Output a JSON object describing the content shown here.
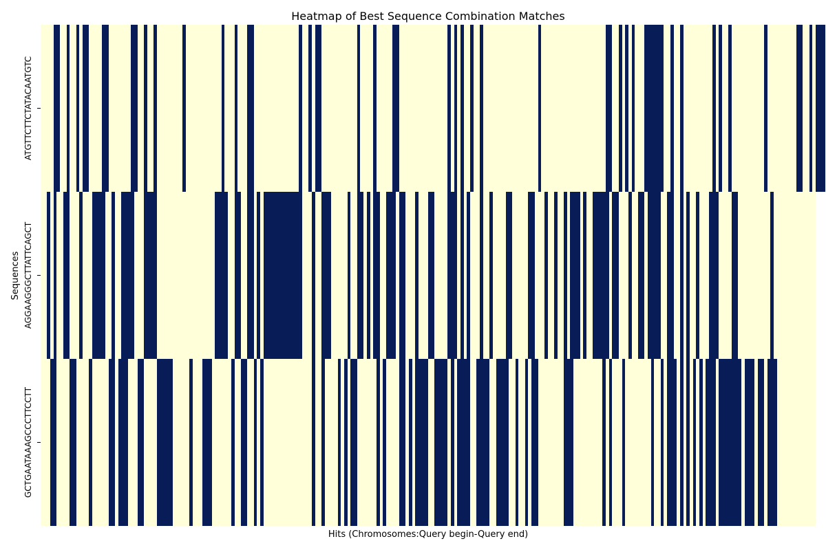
{
  "chart_data": {
    "type": "heatmap",
    "title": "Heatmap of Best Sequence Combination Matches",
    "xlabel": "Hits (Chromosomes:Query begin-Query end)",
    "ylabel": "Sequences",
    "rows": [
      "ATGTTCTTCTATACAATGTC",
      "AGGAAGGGCTTATTCAGCT",
      "GCTGAATAAAGCCCTTCCTT"
    ],
    "value_range": [
      0,
      1
    ],
    "colors": {
      "low": "#ffffd9",
      "high": "#081d58"
    },
    "grid": false,
    "legend": "none",
    "matches": [
      [
        [
          4,
          6
        ],
        [
          8,
          9
        ],
        [
          11,
          12
        ],
        [
          13,
          15
        ],
        [
          19,
          21
        ],
        [
          28,
          30
        ],
        [
          32,
          33
        ],
        [
          35,
          36
        ],
        [
          44,
          45
        ],
        [
          56,
          57
        ],
        [
          60,
          61
        ],
        [
          64,
          66
        ],
        [
          80,
          81
        ],
        [
          83,
          84
        ],
        [
          85,
          87
        ],
        [
          98,
          99
        ],
        [
          103,
          104
        ],
        [
          109,
          111
        ],
        [
          126,
          127
        ],
        [
          128,
          129
        ],
        [
          130,
          131
        ],
        [
          133,
          134
        ],
        [
          136,
          137
        ],
        [
          154,
          155
        ],
        [
          175,
          177
        ],
        [
          179,
          180
        ],
        [
          181,
          182
        ],
        [
          183,
          184
        ],
        [
          187,
          193
        ],
        [
          195,
          196
        ],
        [
          198,
          199
        ],
        [
          208,
          209
        ],
        [
          210,
          211
        ],
        [
          213,
          214
        ],
        [
          224,
          225
        ],
        [
          234,
          236
        ],
        [
          238,
          239
        ],
        [
          240,
          241
        ],
        [
          241,
          243
        ],
        [
          244,
          245
        ],
        [
          245,
          246
        ]
      ],
      [
        [
          2,
          3
        ],
        [
          4,
          5
        ],
        [
          7,
          9
        ],
        [
          12,
          13
        ],
        [
          16,
          20
        ],
        [
          22,
          23
        ],
        [
          25,
          29
        ],
        [
          32,
          36
        ],
        [
          54,
          58
        ],
        [
          60,
          62
        ],
        [
          64,
          66
        ],
        [
          67,
          68
        ],
        [
          69,
          81
        ],
        [
          84,
          85
        ],
        [
          87,
          90
        ],
        [
          95,
          96
        ],
        [
          98,
          100
        ],
        [
          101,
          102
        ],
        [
          103,
          105
        ],
        [
          107,
          110
        ],
        [
          111,
          113
        ],
        [
          116,
          117
        ],
        [
          120,
          122
        ],
        [
          126,
          129
        ],
        [
          130,
          131
        ],
        [
          132,
          133
        ],
        [
          136,
          137
        ],
        [
          139,
          140
        ],
        [
          144,
          146
        ],
        [
          151,
          153
        ],
        [
          156,
          157
        ],
        [
          159,
          160
        ],
        [
          162,
          163
        ],
        [
          164,
          167
        ],
        [
          168,
          169
        ],
        [
          171,
          176
        ],
        [
          177,
          179
        ],
        [
          182,
          183
        ],
        [
          185,
          187
        ],
        [
          188,
          192
        ],
        [
          194,
          196
        ],
        [
          198,
          199
        ],
        [
          200,
          201
        ],
        [
          203,
          204
        ],
        [
          207,
          210
        ],
        [
          214,
          216
        ],
        [
          226,
          227
        ]
      ],
      [
        [
          3,
          5
        ],
        [
          9,
          11
        ],
        [
          15,
          16
        ],
        [
          21,
          23
        ],
        [
          24,
          27
        ],
        [
          30,
          32
        ],
        [
          36,
          41
        ],
        [
          46,
          47
        ],
        [
          50,
          53
        ],
        [
          59,
          60
        ],
        [
          62,
          64
        ],
        [
          66,
          67
        ],
        [
          68,
          69
        ],
        [
          84,
          85
        ],
        [
          87,
          88
        ],
        [
          92,
          93
        ],
        [
          94,
          95
        ],
        [
          96,
          98
        ],
        [
          104,
          105
        ],
        [
          106,
          107
        ],
        [
          111,
          113
        ],
        [
          114,
          115
        ],
        [
          116,
          120
        ],
        [
          122,
          126
        ],
        [
          127,
          128
        ],
        [
          129,
          133
        ],
        [
          135,
          139
        ],
        [
          141,
          145
        ],
        [
          147,
          148
        ],
        [
          150,
          151
        ],
        [
          152,
          154
        ],
        [
          162,
          165
        ],
        [
          174,
          175
        ],
        [
          176,
          177
        ],
        [
          180,
          181
        ],
        [
          189,
          190
        ],
        [
          192,
          193
        ],
        [
          194,
          197
        ],
        [
          198,
          199
        ],
        [
          200,
          201
        ],
        [
          202,
          203
        ],
        [
          204,
          205
        ],
        [
          206,
          209
        ],
        [
          210,
          217
        ],
        [
          218,
          221
        ],
        [
          222,
          224
        ],
        [
          225,
          228
        ]
      ]
    ]
  }
}
